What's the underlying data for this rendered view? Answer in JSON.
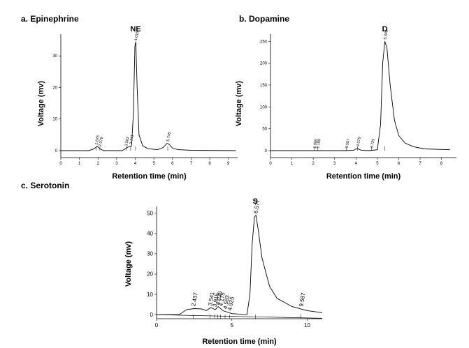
{
  "chart_data": [
    {
      "type": "line",
      "panel_label": "a. Epinephrine",
      "peak_label": "NE",
      "xlabel": "Retention time (min)",
      "ylabel": "Voltage (mv)",
      "xlim": [
        0,
        9.5
      ],
      "ylim": [
        0,
        36
      ],
      "x_ticks": [
        "0",
        "1",
        "2",
        "3",
        "4",
        "5",
        "6",
        "7",
        "8",
        "9"
      ],
      "y_ticks": [
        "0",
        "10",
        "20",
        "30"
      ],
      "peak_annotations": [
        {
          "x": 1.9,
          "label": "1.875"
        },
        {
          "x": 2.1,
          "label": "2.079"
        },
        {
          "x": 3.5,
          "label": "3.562"
        },
        {
          "x": 3.75,
          "label": "3.741"
        },
        {
          "x": 4.016,
          "label": "4.016"
        },
        {
          "x": 5.745,
          "label": "5.745"
        }
      ],
      "series": [
        {
          "x": [
            0,
            1.5,
            1.8,
            1.95,
            2.1,
            2.3,
            3.3,
            3.5,
            3.6,
            3.8,
            3.9,
            3.98,
            4.03,
            4.1,
            4.2,
            4.4,
            4.7,
            5.2,
            5.5,
            5.7,
            5.8,
            6.0,
            6.3,
            7,
            9.4
          ],
          "y": [
            0,
            0,
            0.6,
            1.4,
            0.6,
            0,
            0,
            0.7,
            1.1,
            1.4,
            12,
            33,
            34.5,
            20,
            5,
            1.5,
            0.6,
            0.3,
            1,
            2.3,
            2.1,
            0.8,
            0.3,
            0.1,
            0
          ]
        }
      ]
    },
    {
      "type": "line",
      "panel_label": "b. Dopamine",
      "peak_label": "D",
      "xlabel": "Retention time (min)",
      "ylabel": "Voltage (mv)",
      "xlim": [
        0,
        8.7
      ],
      "ylim": [
        0,
        260
      ],
      "x_ticks": [
        "0",
        "1",
        "2",
        "3",
        "4",
        "5",
        "6",
        "7",
        "8"
      ],
      "y_ticks": [
        "0",
        "50",
        "100",
        "150",
        "200",
        "250"
      ],
      "peak_annotations": [
        {
          "x": 2.05,
          "label": "1.985"
        },
        {
          "x": 2.2,
          "label": "2.189"
        },
        {
          "x": 3.557,
          "label": "3.557"
        },
        {
          "x": 4.079,
          "label": "4.079"
        },
        {
          "x": 4.729,
          "label": "4.729"
        },
        {
          "x": 5.348,
          "label": "5.348"
        }
      ],
      "series": [
        {
          "x": [
            0,
            2,
            3.5,
            3.9,
            4.05,
            4.25,
            4.6,
            5.0,
            5.15,
            5.25,
            5.35,
            5.45,
            5.6,
            5.8,
            6.0,
            6.3,
            6.7,
            7.2,
            8.4
          ],
          "y": [
            0,
            0,
            0,
            1,
            5,
            1,
            0,
            2,
            60,
            200,
            250,
            235,
            150,
            70,
            35,
            17,
            9,
            4,
            2
          ]
        }
      ]
    },
    {
      "type": "line",
      "panel_label": "c. Serotonin",
      "peak_label": "S",
      "xlabel": "Retention time (min)",
      "ylabel": "Voltage (mv)",
      "xlim": [
        0,
        11
      ],
      "ylim": [
        -2,
        52
      ],
      "x_ticks": [
        "0",
        "5",
        "10"
      ],
      "y_ticks": [
        "0",
        "10",
        "20",
        "30",
        "40",
        "50"
      ],
      "peak_annotations": [
        {
          "x": 2.437,
          "label": "2.437"
        },
        {
          "x": 3.541,
          "label": "3.541"
        },
        {
          "x": 3.85,
          "label": "3.915"
        },
        {
          "x": 4.05,
          "label": "4.036"
        },
        {
          "x": 4.25,
          "label": "4.175"
        },
        {
          "x": 4.55,
          "label": "4.583"
        },
        {
          "x": 4.85,
          "label": "4.925"
        },
        {
          "x": 6.577,
          "label": "6.577"
        },
        {
          "x": 9.587,
          "label": "9.587"
        }
      ],
      "series": [
        {
          "x": [
            0,
            1.5,
            2.0,
            2.5,
            3.0,
            3.3,
            3.6,
            3.9,
            4.1,
            4.4,
            5.0,
            6.0,
            6.2,
            6.35,
            6.5,
            6.6,
            6.75,
            7.0,
            7.5,
            8.0,
            9.0,
            10.0,
            11.0
          ],
          "y": [
            0,
            0,
            2.5,
            3,
            2.8,
            2,
            3.5,
            2.5,
            4,
            2,
            0.5,
            0,
            10,
            35,
            48,
            49,
            42,
            28,
            14,
            8,
            4,
            2,
            1
          ]
        },
        {
          "x": [
            0,
            11
          ],
          "y": [
            0,
            -1.8
          ]
        }
      ]
    }
  ]
}
